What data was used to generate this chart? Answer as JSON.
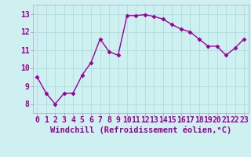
{
  "x": [
    0,
    1,
    2,
    3,
    4,
    5,
    6,
    7,
    8,
    9,
    10,
    11,
    12,
    13,
    14,
    15,
    16,
    17,
    18,
    19,
    20,
    21,
    22,
    23
  ],
  "y": [
    9.5,
    8.6,
    8.0,
    8.6,
    8.6,
    9.6,
    10.3,
    11.6,
    10.9,
    10.7,
    12.9,
    12.9,
    12.95,
    12.85,
    12.7,
    12.4,
    12.15,
    12.0,
    11.6,
    11.2,
    11.2,
    10.7,
    11.1,
    11.6
  ],
  "line_color": "#990099",
  "marker": "D",
  "markersize": 2.5,
  "linewidth": 1,
  "bg_color": "#cff0f0",
  "grid_color": "#aadddd",
  "xlabel": "Windchill (Refroidissement éolien,°C)",
  "xlabel_fontsize": 7.5,
  "tick_fontsize": 7,
  "ylim": [
    7.5,
    13.5
  ],
  "xlim": [
    -0.5,
    23.5
  ],
  "yticks": [
    8,
    9,
    10,
    11,
    12,
    13
  ],
  "xticks": [
    0,
    1,
    2,
    3,
    4,
    5,
    6,
    7,
    8,
    9,
    10,
    11,
    12,
    13,
    14,
    15,
    16,
    17,
    18,
    19,
    20,
    21,
    22,
    23
  ]
}
